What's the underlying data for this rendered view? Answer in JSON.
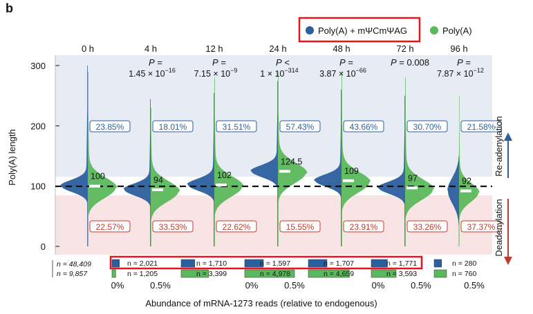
{
  "panel_label": "b",
  "colors": {
    "modified": "#2c5f9e",
    "unmodified": "#5cb85c",
    "readenyl_band": "#e6ebf4",
    "deadenyl_band": "#f8e4e4",
    "highlight": "#e8141c",
    "pct_blue": "#2c5f9e",
    "pct_red": "#c0392b"
  },
  "legend": {
    "modified_label": "Poly(A) + mΨCmΨAG",
    "unmodified_label": "Poly(A)"
  },
  "side_labels": {
    "up": "Re-adenylation",
    "down": "Deadenylation"
  },
  "abundance": {
    "xlabel": "Abundance of mRNA-1273 reads (relative to endogenous)",
    "tick_left": "0%",
    "tick_right": "0.5%"
  },
  "chart_data": {
    "type": "violin",
    "title": "",
    "xlabel": "",
    "ylabel": "Poly(A) length",
    "ylim": [
      -10,
      310
    ],
    "yticks": [
      0,
      100,
      200,
      300
    ],
    "reference_line": 100,
    "categories": [
      "0 h",
      "4 h",
      "12 h",
      "24 h",
      "48 h",
      "72 h",
      "96 h"
    ],
    "p_values": [
      {
        "line1": "",
        "line2": ""
      },
      {
        "line1": "P =",
        "line2": "1.45 × 10",
        "exp": "−16"
      },
      {
        "line1": "P =",
        "line2": "7.15 × 10",
        "exp": "−9"
      },
      {
        "line1": "P <",
        "line2": "1 × 10",
        "exp": "−314"
      },
      {
        "line1": "P =",
        "line2": "3.87 × 10",
        "exp": "−66"
      },
      {
        "line1": "P = 0.008",
        "line2": ""
      },
      {
        "line1": "P =",
        "line2": "7.87 × 10",
        "exp": "−12"
      }
    ],
    "modified_median": [
      100,
      94,
      102,
      124.5,
      109,
      97,
      92
    ],
    "median_labels": [
      "100",
      "94",
      "102",
      "124.5",
      "109",
      "97",
      "92"
    ],
    "pct_above": [
      "23.85%",
      "18.01%",
      "31.51%",
      "57.43%",
      "43.66%",
      "30.70%",
      "21.58%"
    ],
    "pct_below": [
      "22.57%",
      "33.53%",
      "22.62%",
      "15.55%",
      "23.91%",
      "33.26%",
      "37.37%"
    ],
    "series": [
      {
        "name": "Poly(A) + mΨCmΨAG",
        "n": [
          "",
          "n = 2,021",
          "n = 1,710",
          "n = 1,597",
          "n = 1,707",
          "n = 1,771",
          "n = 280"
        ],
        "abundance": [
          0,
          0.06,
          0.11,
          0.15,
          0.15,
          0.13,
          0.06
        ]
      },
      {
        "name": "Poly(A)",
        "n": [
          "",
          "n = 1,205",
          "n = 3,399",
          "n = 4,978",
          "n = 4,659",
          "n = 3,593",
          "n = 760"
        ],
        "abundance": [
          0,
          0.03,
          0.22,
          0.4,
          0.33,
          0.2,
          0.1
        ]
      }
    ],
    "endogenous_n": [
      "n = 48,409",
      "n = 9,857"
    ]
  }
}
